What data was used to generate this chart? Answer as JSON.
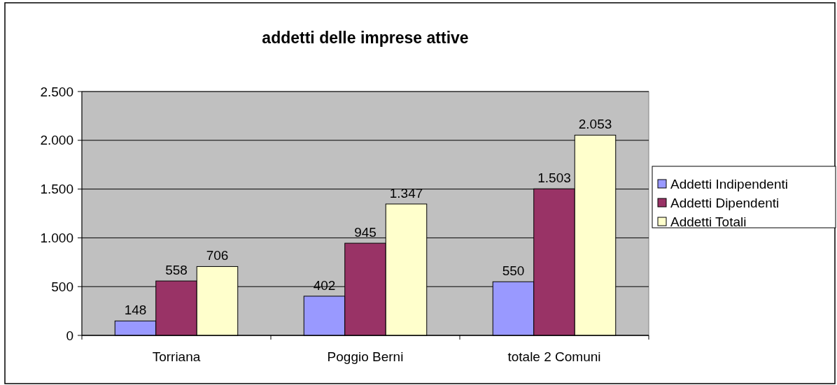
{
  "chart_data": {
    "type": "bar",
    "title": "addetti delle imprese attive",
    "categories": [
      "Torriana",
      "Poggio Berni",
      "totale 2 Comuni"
    ],
    "series": [
      {
        "name": "Addetti Indipendenti",
        "color": "#9999ff",
        "values": [
          148,
          402,
          550
        ],
        "value_labels": [
          "148",
          "402",
          "550"
        ]
      },
      {
        "name": "Addetti Dipendenti",
        "color": "#993366",
        "values": [
          558,
          945,
          1503
        ],
        "value_labels": [
          "558",
          "945",
          "1.503"
        ]
      },
      {
        "name": "Addetti Totali",
        "color": "#ffffcc",
        "values": [
          706,
          1347,
          2053
        ],
        "value_labels": [
          "706",
          "1.347",
          "2.053"
        ]
      }
    ],
    "ylim": [
      0,
      2500
    ],
    "yticks": [
      0,
      500,
      {
        "value": 1000,
        "label": "1.000"
      },
      {
        "value": 1500,
        "label": "1.500"
      },
      {
        "value": 2000,
        "label": "2.000"
      },
      {
        "value": 2500,
        "label": "2.500"
      }
    ],
    "grid": "y",
    "legend": "right"
  }
}
